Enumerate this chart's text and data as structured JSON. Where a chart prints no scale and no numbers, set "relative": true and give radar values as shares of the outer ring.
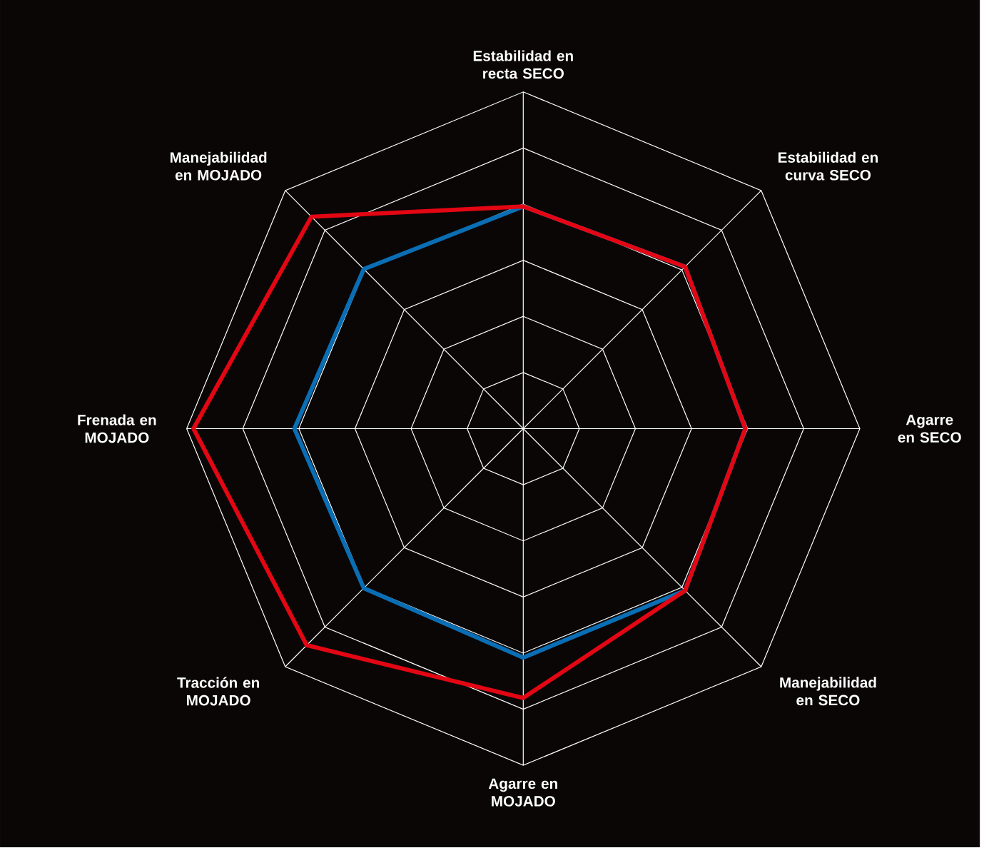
{
  "chart_data": {
    "type": "radar",
    "relative": true,
    "grid": true,
    "line_style": "solid",
    "marker": "none",
    "categories": [
      "Estabilidad en recta SECO",
      "Estabilidad en curva SECO",
      "Agarre en SECO",
      "Manejabilidad en SECO",
      "Agarre en MOJADO",
      "Tracción en MOJADO",
      "Frenada en MOJADO",
      "Manejabilidad en MOJADO"
    ],
    "series": [
      {
        "color": "#0a6eb4",
        "values": [
          0.66,
          0.68,
          0.66,
          0.68,
          0.68,
          0.67,
          0.68,
          0.67
        ]
      },
      {
        "color": "#e30613",
        "values": [
          0.66,
          0.68,
          0.66,
          0.68,
          0.8,
          0.91,
          0.98,
          0.89
        ]
      }
    ]
  }
}
